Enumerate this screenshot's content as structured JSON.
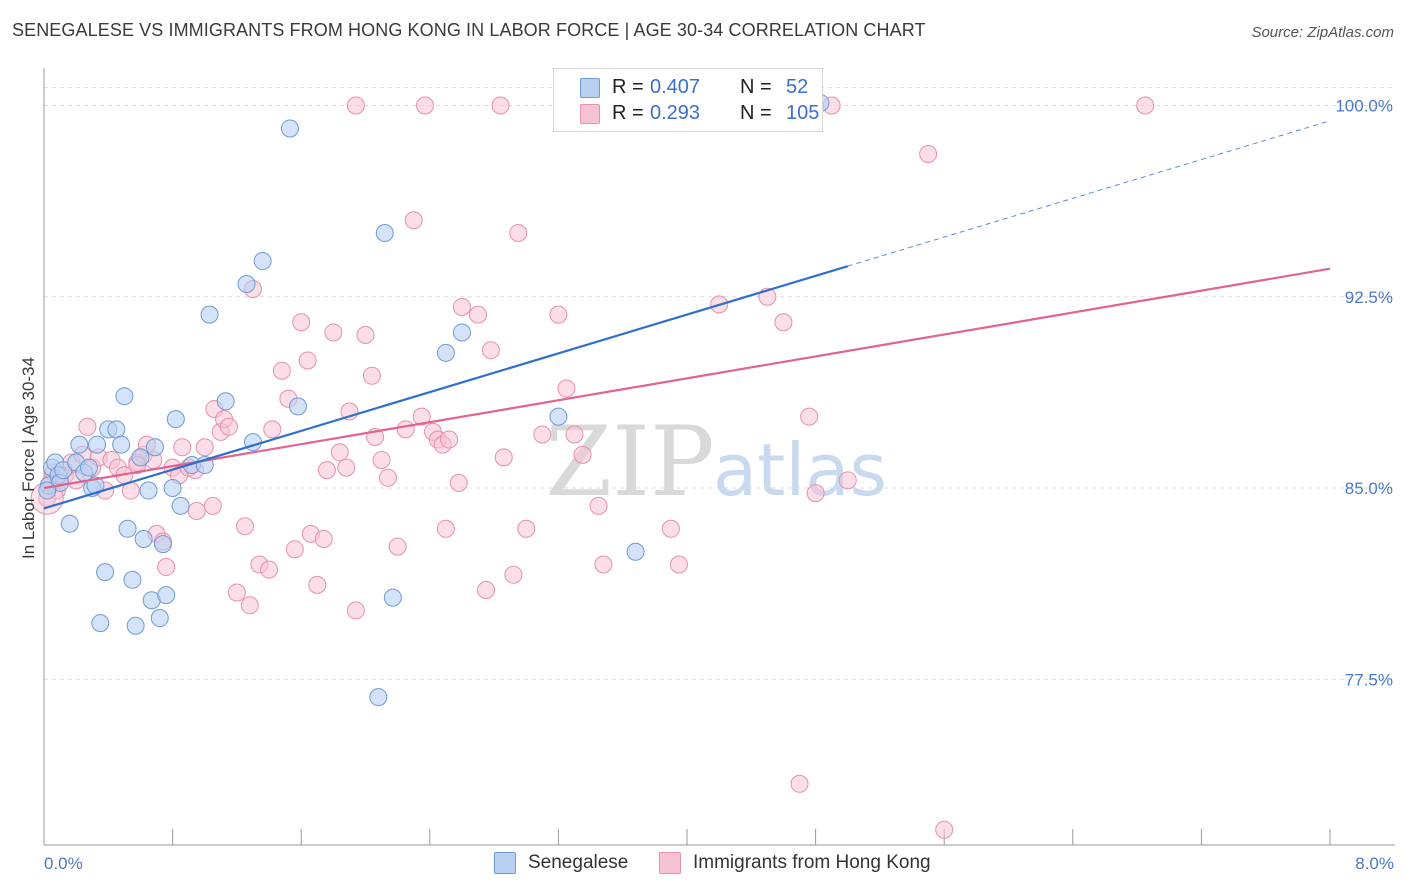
{
  "title": "SENEGALESE VS IMMIGRANTS FROM HONG KONG IN LABOR FORCE | AGE 30-34 CORRELATION CHART",
  "source": "Source: ZipAtlas.com",
  "colors": {
    "series1_fill": "#b8d0f2",
    "series1_stroke": "#6f9ad8",
    "series1_line": "#2f6fce",
    "series2_fill": "#f7c3d3",
    "series2_stroke": "#e790ad",
    "series2_line": "#e0648f",
    "tick_label": "#4a78c8",
    "grid": "#dddddd"
  },
  "legend": {
    "row1": {
      "r_label": "R =",
      "r_value": "0.407",
      "n_label": "N =",
      "n_value": "52"
    },
    "row2": {
      "r_label": "R =",
      "r_value": "0.293",
      "n_label": "N =",
      "n_value": "105"
    }
  },
  "watermark": {
    "part1": "ZIP",
    "part2": "atlas"
  },
  "chart_data": {
    "type": "scatter",
    "title": "SENEGALESE VS IMMIGRANTS FROM HONG KONG IN LABOR FORCE | AGE 30-34 CORRELATION CHART",
    "xlabel": "",
    "ylabel": "In Labor Force | Age 30-34",
    "xlim": [
      0.0,
      8.0
    ],
    "ylim": [
      71.0,
      101.0
    ],
    "x_tick_labels": [
      "0.0%",
      "8.0%"
    ],
    "y_ticks": [
      77.5,
      85.0,
      92.5,
      100.0
    ],
    "y_tick_labels": [
      "77.5%",
      "85.0%",
      "92.5%",
      "100.0%"
    ],
    "grid": true,
    "legend_position": "top-center",
    "series": [
      {
        "name": "Senegalese",
        "trend": {
          "x": [
            0.0,
            5.0
          ],
          "y": [
            84.2,
            93.7
          ],
          "dashed_extension_to_x": 8.0
        },
        "points": [
          [
            0.03,
            85.1
          ],
          [
            0.05,
            85.8
          ],
          [
            0.07,
            86.0
          ],
          [
            0.09,
            85.5
          ],
          [
            0.1,
            85.2
          ],
          [
            0.12,
            85.7
          ],
          [
            0.16,
            83.6
          ],
          [
            0.2,
            86.0
          ],
          [
            0.22,
            86.7
          ],
          [
            0.25,
            85.6
          ],
          [
            0.28,
            85.8
          ],
          [
            0.3,
            85.0
          ],
          [
            0.32,
            85.1
          ],
          [
            0.33,
            86.7
          ],
          [
            0.35,
            79.7
          ],
          [
            0.38,
            81.7
          ],
          [
            0.4,
            87.3
          ],
          [
            0.45,
            87.3
          ],
          [
            0.48,
            86.7
          ],
          [
            0.5,
            88.6
          ],
          [
            0.52,
            83.4
          ],
          [
            0.55,
            81.4
          ],
          [
            0.57,
            79.6
          ],
          [
            0.6,
            86.2
          ],
          [
            0.62,
            83.0
          ],
          [
            0.65,
            84.9
          ],
          [
            0.67,
            80.6
          ],
          [
            0.69,
            86.6
          ],
          [
            0.72,
            79.9
          ],
          [
            0.74,
            82.8
          ],
          [
            0.76,
            80.8
          ],
          [
            0.8,
            85.0
          ],
          [
            0.82,
            87.7
          ],
          [
            0.85,
            84.3
          ],
          [
            0.92,
            85.9
          ],
          [
            1.0,
            85.9
          ],
          [
            1.03,
            91.8
          ],
          [
            1.13,
            88.4
          ],
          [
            1.26,
            93.0
          ],
          [
            1.3,
            86.8
          ],
          [
            1.36,
            93.9
          ],
          [
            1.53,
            99.1
          ],
          [
            1.58,
            88.2
          ],
          [
            2.12,
            95.0
          ],
          [
            2.17,
            80.7
          ],
          [
            2.08,
            76.8
          ],
          [
            2.5,
            90.3
          ],
          [
            2.6,
            91.1
          ],
          [
            3.2,
            87.8
          ],
          [
            3.68,
            82.5
          ],
          [
            4.83,
            100.1
          ],
          [
            0.02,
            84.9
          ]
        ]
      },
      {
        "name": "Immigrants from Hong Kong",
        "trend": {
          "x": [
            0.0,
            8.0
          ],
          "y": [
            85.0,
            93.6
          ]
        },
        "points": [
          [
            0.02,
            84.6
          ],
          [
            0.04,
            85.2
          ],
          [
            0.06,
            85.6
          ],
          [
            0.08,
            84.9
          ],
          [
            0.1,
            85.4
          ],
          [
            0.13,
            85.5
          ],
          [
            0.17,
            86.0
          ],
          [
            0.2,
            85.3
          ],
          [
            0.24,
            86.3
          ],
          [
            0.27,
            87.4
          ],
          [
            0.3,
            85.8
          ],
          [
            0.34,
            86.2
          ],
          [
            0.38,
            84.9
          ],
          [
            0.42,
            86.1
          ],
          [
            0.46,
            85.8
          ],
          [
            0.5,
            85.5
          ],
          [
            0.54,
            84.9
          ],
          [
            0.58,
            86.0
          ],
          [
            0.62,
            86.3
          ],
          [
            0.64,
            86.7
          ],
          [
            0.68,
            86.1
          ],
          [
            0.7,
            83.2
          ],
          [
            0.74,
            82.9
          ],
          [
            0.76,
            81.9
          ],
          [
            0.8,
            85.8
          ],
          [
            0.84,
            85.5
          ],
          [
            0.86,
            86.6
          ],
          [
            0.9,
            85.8
          ],
          [
            0.95,
            84.1
          ],
          [
            1.0,
            86.6
          ],
          [
            1.05,
            84.3
          ],
          [
            1.06,
            88.1
          ],
          [
            1.1,
            87.2
          ],
          [
            1.12,
            87.7
          ],
          [
            1.15,
            87.4
          ],
          [
            1.2,
            80.9
          ],
          [
            1.25,
            83.5
          ],
          [
            1.28,
            80.4
          ],
          [
            1.3,
            92.8
          ],
          [
            1.34,
            82.0
          ],
          [
            1.4,
            81.8
          ],
          [
            1.42,
            87.3
          ],
          [
            1.48,
            89.6
          ],
          [
            1.52,
            88.5
          ],
          [
            1.56,
            82.6
          ],
          [
            1.6,
            91.5
          ],
          [
            1.64,
            90.0
          ],
          [
            1.66,
            83.2
          ],
          [
            1.7,
            81.2
          ],
          [
            1.74,
            83.0
          ],
          [
            1.76,
            85.7
          ],
          [
            1.8,
            91.1
          ],
          [
            1.84,
            86.4
          ],
          [
            1.88,
            85.8
          ],
          [
            1.9,
            88.0
          ],
          [
            1.94,
            80.2
          ],
          [
            2.0,
            91.0
          ],
          [
            2.04,
            89.4
          ],
          [
            2.06,
            87.0
          ],
          [
            2.1,
            86.1
          ],
          [
            2.14,
            85.4
          ],
          [
            2.2,
            82.7
          ],
          [
            2.25,
            87.3
          ],
          [
            2.3,
            95.5
          ],
          [
            2.35,
            87.8
          ],
          [
            2.42,
            87.2
          ],
          [
            2.45,
            86.9
          ],
          [
            2.48,
            86.7
          ],
          [
            2.5,
            83.4
          ],
          [
            2.52,
            86.9
          ],
          [
            2.58,
            85.2
          ],
          [
            2.6,
            92.1
          ],
          [
            2.7,
            91.8
          ],
          [
            2.75,
            81.0
          ],
          [
            2.78,
            90.4
          ],
          [
            2.86,
            86.2
          ],
          [
            2.92,
            81.6
          ],
          [
            2.95,
            95.0
          ],
          [
            3.0,
            83.4
          ],
          [
            3.1,
            87.1
          ],
          [
            3.2,
            91.8
          ],
          [
            3.25,
            88.9
          ],
          [
            3.3,
            87.1
          ],
          [
            3.35,
            86.3
          ],
          [
            3.45,
            84.3
          ],
          [
            3.48,
            82.0
          ],
          [
            3.55,
            100.0
          ],
          [
            3.9,
            83.4
          ],
          [
            3.95,
            82.0
          ],
          [
            4.2,
            92.2
          ],
          [
            4.5,
            92.5
          ],
          [
            4.6,
            91.5
          ],
          [
            4.76,
            87.8
          ],
          [
            4.8,
            84.8
          ],
          [
            5.0,
            85.3
          ],
          [
            4.9,
            100.0
          ],
          [
            5.5,
            98.1
          ],
          [
            5.6,
            71.6
          ],
          [
            4.7,
            73.4
          ],
          [
            1.94,
            100.0
          ],
          [
            2.37,
            100.0
          ],
          [
            2.84,
            100.0
          ],
          [
            6.85,
            100.0
          ],
          [
            0.58,
            85.9
          ],
          [
            0.94,
            85.7
          ]
        ]
      }
    ]
  },
  "bottom_legend": {
    "item1": "Senegalese",
    "item2": "Immigrants from Hong Kong"
  }
}
